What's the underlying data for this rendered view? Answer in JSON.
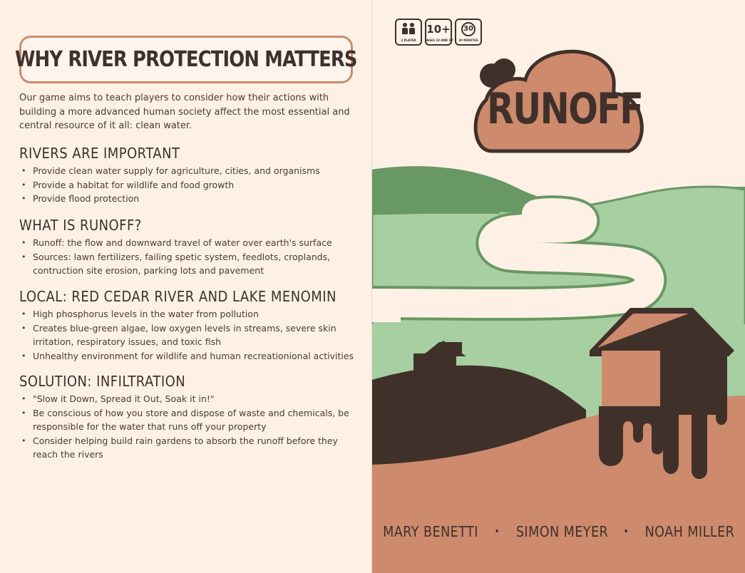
{
  "left_page": {
    "title": "WHY RIVER PROTECTION MATTERS",
    "intro": "Our game aims to teach players to consider how their actions with building a more advanced human society affect the most essential and central resource of it all: clean water.",
    "sections": [
      {
        "heading": "RIVERS ARE IMPORTANT",
        "items": [
          "Provide clean water supply for agriculture, cities, and organisms",
          "Provide a habitat for wildlife and food growth",
          "Provide flood protection"
        ]
      },
      {
        "heading": "WHAT IS RUNOFF?",
        "items": [
          "Runoff: the flow and downward travel of water over earth's surface",
          "Sources: lawn fertilizers, failing spetic system, feedlots, croplands, contruction site erosion, parking lots and pavement"
        ]
      },
      {
        "heading": "LOCAL: RED CEDAR RIVER AND LAKE MENOMIN",
        "items": [
          "High phosphorus levels in the water from pollution",
          "Creates blue-green algae, low oxygen levels in streams, severe skin irritation, respiratory issues, and toxic fish",
          "Unhealthy environment for wildlife and human recreationional activities"
        ]
      },
      {
        "heading": "SOLUTION: INFILTRATION",
        "items": [
          "\"Slow it Down, Spread it Out, Soak it in!\"",
          "Be conscious of how you store and dispose of waste and chemicals, be responsible for the water that runs off your property",
          "Consider helping build rain gardens to absorb the runoff before they reach the rivers"
        ]
      }
    ]
  },
  "cover": {
    "badges": [
      {
        "icon": "players-icon",
        "main": "",
        "caption": "2 PLAYER"
      },
      {
        "icon": "age-icon",
        "main": "10+",
        "caption": "AGES 10 AND UP"
      },
      {
        "icon": "clock-icon",
        "main": "30",
        "caption": "30 MINUTES"
      }
    ],
    "title": "RUNOFF",
    "authors": [
      "MARY BENETTI",
      "SIMON MEYER",
      "NOAH MILLER"
    ]
  },
  "colors": {
    "paper": "#fdf1e5",
    "terracotta": "#cd8a6d",
    "dark_brown": "#40302a",
    "dark_green": "#689864",
    "light_green": "#a7cfa1",
    "cream": "#fdf1e5"
  }
}
